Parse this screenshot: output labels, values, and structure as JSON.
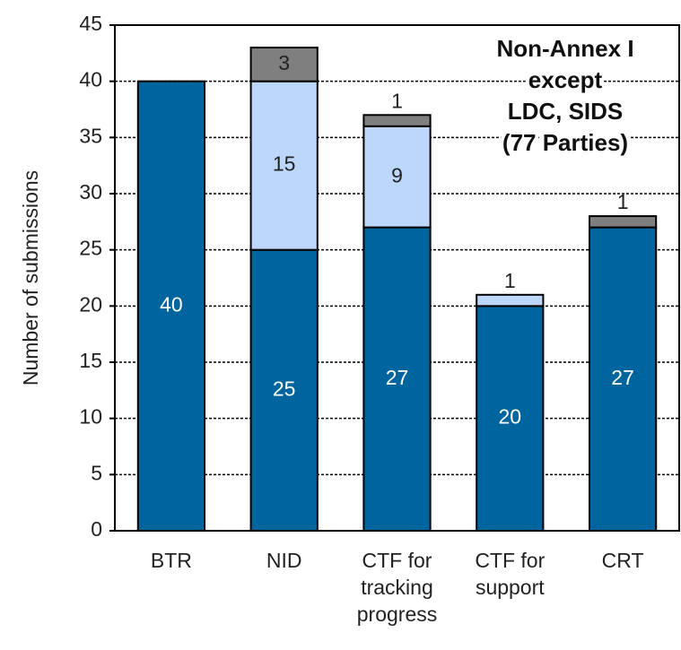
{
  "chart_data": {
    "type": "stacked_bar",
    "y_label": "Number of submissions",
    "annotation": [
      "Non-Annex I",
      "except",
      "LDC, SIDS",
      "(77 Parties)"
    ],
    "categories": [
      "BTR",
      "NID",
      "CTF for tracking progress",
      "CTF for support",
      "CRT"
    ],
    "series": [
      {
        "color": "#00659f",
        "label_color": "#ffffff",
        "values": [
          40,
          25,
          27,
          20,
          27
        ]
      },
      {
        "color": "#bdd7fb",
        "label_color": "#222222",
        "values": [
          null,
          15,
          9,
          1,
          null
        ]
      },
      {
        "color": "#7f7f7f",
        "label_color": "#222222",
        "values": [
          null,
          3,
          1,
          null,
          1
        ]
      }
    ],
    "ylim": [
      0,
      45
    ],
    "yticks": [
      0,
      5,
      10,
      15,
      20,
      25,
      30,
      35,
      40,
      45
    ],
    "grid": true
  }
}
